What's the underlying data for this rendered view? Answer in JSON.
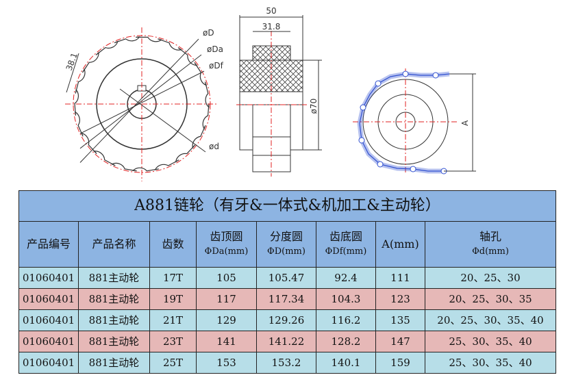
{
  "drawing": {
    "labels": {
      "D": "øD",
      "Da": "øDa",
      "Df": "øDf",
      "d": "ød",
      "pitch": "38.1",
      "width_total": "50",
      "width_hub": "31.8",
      "dia": "ø70",
      "A": "A"
    },
    "colors": {
      "centerline": "#e02020",
      "chain": "#3050d0",
      "line": "#333333"
    }
  },
  "table": {
    "title": "A881链轮（有牙&一体式&机加工&主动轮）",
    "headers": [
      {
        "l1": "产品编号"
      },
      {
        "l1": "产品名称"
      },
      {
        "l1": "齿数"
      },
      {
        "l1": "齿顶圆",
        "l2": "ΦDa(mm)"
      },
      {
        "l1": "分度圆",
        "l2": "ΦD(mm)"
      },
      {
        "l1": "齿底圆",
        "l2": "ΦDf(mm)"
      },
      {
        "l1": "A(mm)"
      },
      {
        "l1": "轴孔",
        "l2": "Φd(mm)"
      }
    ],
    "rows": [
      [
        "01060401",
        "881主动轮",
        "17T",
        "105",
        "105.47",
        "92.4",
        "111",
        "20、25、30"
      ],
      [
        "01060401",
        "881主动轮",
        "19T",
        "117",
        "117.34",
        "104.3",
        "123",
        "20、25、30、35"
      ],
      [
        "01060401",
        "881主动轮",
        "21T",
        "129",
        "129.26",
        "116.2",
        "135",
        "20、25、30、35、40"
      ],
      [
        "01060401",
        "881主动轮",
        "23T",
        "141",
        "141.22",
        "128.2",
        "147",
        "25、30、35、40"
      ],
      [
        "01060401",
        "881主动轮",
        "25T",
        "153",
        "153.2",
        "140.1",
        "159",
        "25、30、35、40"
      ]
    ],
    "row_colors": [
      "#b7dee8",
      "#e6b8b7"
    ],
    "header_color": "#8db4e2"
  }
}
